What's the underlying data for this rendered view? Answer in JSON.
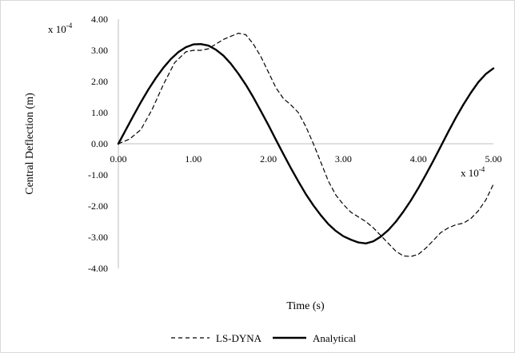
{
  "chart_data": {
    "type": "line",
    "title": "",
    "xlabel": "Time (s)",
    "ylabel": "Central Deflection (m)",
    "x_scale_note": "x 10",
    "x_scale_exp": "-4",
    "y_scale_note": "x 10",
    "y_scale_exp": "-4",
    "xlim": [
      0,
      5
    ],
    "ylim": [
      -4,
      4
    ],
    "x_ticks": [
      "0.00",
      "1.00",
      "2.00",
      "3.00",
      "4.00",
      "5.00"
    ],
    "y_ticks": [
      "4.00",
      "3.00",
      "2.00",
      "1.00",
      "0.00",
      "-1.00",
      "-2.00",
      "-3.00",
      "-4.00"
    ],
    "grid": false,
    "legend_position": "bottom",
    "series": [
      {
        "name": "LS-DYNA",
        "style": "dashed",
        "color": "#000000",
        "x": [
          0.0,
          0.15,
          0.3,
          0.45,
          0.6,
          0.75,
          0.9,
          1.0,
          1.1,
          1.2,
          1.3,
          1.4,
          1.5,
          1.6,
          1.7,
          1.8,
          1.9,
          2.0,
          2.1,
          2.2,
          2.3,
          2.4,
          2.5,
          2.6,
          2.7,
          2.8,
          2.9,
          3.0,
          3.1,
          3.2,
          3.3,
          3.4,
          3.5,
          3.6,
          3.7,
          3.8,
          3.9,
          4.0,
          4.1,
          4.2,
          4.3,
          4.4,
          4.5,
          4.6,
          4.7,
          4.8,
          4.9,
          5.0
        ],
        "values": [
          0.0,
          0.15,
          0.45,
          1.1,
          1.9,
          2.6,
          2.95,
          3.0,
          3.0,
          3.05,
          3.2,
          3.35,
          3.45,
          3.55,
          3.5,
          3.2,
          2.8,
          2.3,
          1.8,
          1.45,
          1.25,
          1.0,
          0.55,
          0.0,
          -0.6,
          -1.2,
          -1.65,
          -1.95,
          -2.2,
          -2.35,
          -2.5,
          -2.7,
          -2.95,
          -3.2,
          -3.45,
          -3.6,
          -3.62,
          -3.55,
          -3.35,
          -3.1,
          -2.85,
          -2.7,
          -2.6,
          -2.55,
          -2.4,
          -2.15,
          -1.8,
          -1.3
        ]
      },
      {
        "name": "Analytical",
        "style": "solid",
        "color": "#000000",
        "x": [
          0.0,
          0.1,
          0.2,
          0.3,
          0.4,
          0.5,
          0.6,
          0.7,
          0.8,
          0.9,
          1.0,
          1.1,
          1.2,
          1.3,
          1.4,
          1.5,
          1.6,
          1.7,
          1.8,
          1.9,
          2.0,
          2.1,
          2.2,
          2.3,
          2.4,
          2.5,
          2.6,
          2.7,
          2.8,
          2.9,
          3.0,
          3.1,
          3.2,
          3.3,
          3.4,
          3.5,
          3.6,
          3.7,
          3.8,
          3.9,
          4.0,
          4.1,
          4.2,
          4.3,
          4.4,
          4.5,
          4.6,
          4.7,
          4.8,
          4.9,
          5.0
        ],
        "values": [
          0.0,
          0.45,
          0.9,
          1.33,
          1.74,
          2.11,
          2.44,
          2.72,
          2.94,
          3.1,
          3.19,
          3.2,
          3.15,
          3.02,
          2.83,
          2.57,
          2.25,
          1.89,
          1.49,
          1.05,
          0.6,
          0.13,
          -0.33,
          -0.78,
          -1.21,
          -1.62,
          -1.98,
          -2.3,
          -2.58,
          -2.8,
          -2.97,
          -3.08,
          -3.17,
          -3.2,
          -3.13,
          -2.98,
          -2.77,
          -2.5,
          -2.18,
          -1.82,
          -1.42,
          -0.99,
          -0.54,
          -0.08,
          0.39,
          0.84,
          1.26,
          1.64,
          1.98,
          2.24,
          2.42
        ]
      }
    ]
  }
}
